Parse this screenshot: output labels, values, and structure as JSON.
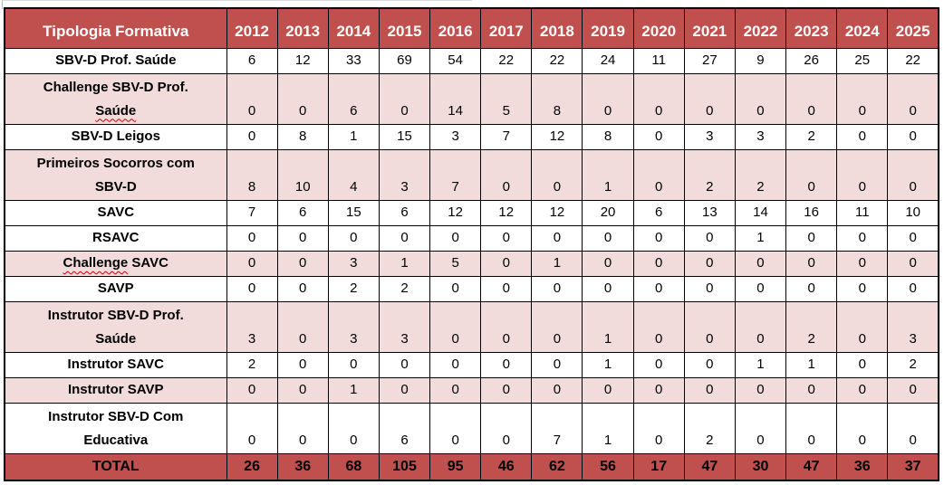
{
  "colors": {
    "header_red": "#C0504D",
    "pink_row": "#F2DCDB",
    "border": "#000000",
    "header_text": "#FFFFFF",
    "squiggle_red": "#C00000"
  },
  "table": {
    "header": {
      "label": "Tipologia Formativa",
      "years": [
        "2012",
        "2013",
        "2014",
        "2015",
        "2016",
        "2017",
        "2018",
        "2019",
        "2020",
        "2021",
        "2022",
        "2023",
        "2024",
        "2025"
      ]
    },
    "rows": [
      {
        "label": "SBV-D Prof. Saúde",
        "label_lines": [
          [
            {
              "t": "SBV-D Prof. Saúde",
              "m": false
            }
          ]
        ],
        "shade": "white",
        "values": [
          6,
          12,
          33,
          69,
          54,
          22,
          22,
          24,
          11,
          27,
          9,
          26,
          25,
          22
        ]
      },
      {
        "label": "Challenge SBV-D Prof. Saúde",
        "label_lines": [
          [
            {
              "t": "Challenge SBV-D Prof.",
              "m": false
            }
          ],
          [
            {
              "t": "Saúde",
              "m": true
            }
          ]
        ],
        "shade": "pink",
        "values": [
          0,
          0,
          6,
          0,
          14,
          5,
          8,
          0,
          0,
          0,
          0,
          0,
          0,
          0
        ]
      },
      {
        "label": "SBV-D Leigos",
        "label_lines": [
          [
            {
              "t": "SBV-D Leigos",
              "m": false
            }
          ]
        ],
        "shade": "white",
        "values": [
          0,
          8,
          1,
          15,
          3,
          7,
          12,
          8,
          0,
          3,
          3,
          2,
          0,
          0
        ]
      },
      {
        "label": "Primeiros Socorros com SBV-D",
        "label_lines": [
          [
            {
              "t": "Primeiros Socorros com",
              "m": false
            }
          ],
          [
            {
              "t": "SBV-D",
              "m": false
            }
          ]
        ],
        "shade": "pink",
        "values": [
          8,
          10,
          4,
          3,
          7,
          0,
          0,
          1,
          0,
          2,
          2,
          0,
          0,
          0
        ]
      },
      {
        "label": "SAVC",
        "label_lines": [
          [
            {
              "t": "SAVC",
              "m": false
            }
          ]
        ],
        "shade": "white",
        "values": [
          7,
          6,
          15,
          6,
          12,
          12,
          12,
          20,
          6,
          13,
          14,
          16,
          11,
          10
        ]
      },
      {
        "label": "RSAVC",
        "label_lines": [
          [
            {
              "t": "RSAVC",
              "m": false
            }
          ]
        ],
        "shade": "white",
        "values": [
          0,
          0,
          0,
          0,
          0,
          0,
          0,
          0,
          0,
          0,
          1,
          0,
          0,
          0
        ]
      },
      {
        "label": "Challenge SAVC",
        "label_lines": [
          [
            {
              "t": "Challenge",
              "m": true
            },
            {
              "t": " SAVC",
              "m": false
            }
          ]
        ],
        "shade": "pink",
        "values": [
          0,
          0,
          3,
          1,
          5,
          0,
          1,
          0,
          0,
          0,
          0,
          0,
          0,
          0
        ]
      },
      {
        "label": "SAVP",
        "label_lines": [
          [
            {
              "t": "SAVP",
              "m": false
            }
          ]
        ],
        "shade": "white",
        "values": [
          0,
          0,
          2,
          2,
          0,
          0,
          0,
          0,
          0,
          0,
          0,
          0,
          0,
          0
        ]
      },
      {
        "label": "Instrutor SBV-D Prof. Saúde",
        "label_lines": [
          [
            {
              "t": "Instrutor SBV-D Prof.",
              "m": false
            }
          ],
          [
            {
              "t": "Saúde",
              "m": false
            }
          ]
        ],
        "shade": "pink",
        "values": [
          3,
          0,
          3,
          3,
          0,
          0,
          0,
          1,
          0,
          0,
          0,
          2,
          0,
          3
        ]
      },
      {
        "label": "Instrutor SAVC",
        "label_lines": [
          [
            {
              "t": "Instrutor SAVC",
              "m": false
            }
          ]
        ],
        "shade": "white",
        "values": [
          2,
          0,
          0,
          0,
          0,
          0,
          0,
          1,
          0,
          0,
          1,
          1,
          0,
          2
        ]
      },
      {
        "label": "Instrutor SAVP",
        "label_lines": [
          [
            {
              "t": "Instrutor SAVP",
              "m": false
            }
          ]
        ],
        "shade": "pink",
        "values": [
          0,
          0,
          1,
          0,
          0,
          0,
          0,
          0,
          0,
          0,
          0,
          0,
          0,
          0
        ]
      },
      {
        "label": "Instrutor SBV-D Com Educativa",
        "label_lines": [
          [
            {
              "t": "Instrutor SBV-D Com",
              "m": false
            }
          ],
          [
            {
              "t": "Educativa",
              "m": false
            }
          ]
        ],
        "shade": "white",
        "values": [
          0,
          0,
          0,
          6,
          0,
          0,
          7,
          1,
          0,
          2,
          0,
          0,
          0,
          0
        ]
      }
    ],
    "total": {
      "label": "TOTAL",
      "values": [
        26,
        36,
        68,
        105,
        95,
        46,
        62,
        56,
        17,
        47,
        30,
        47,
        36,
        37
      ]
    }
  }
}
